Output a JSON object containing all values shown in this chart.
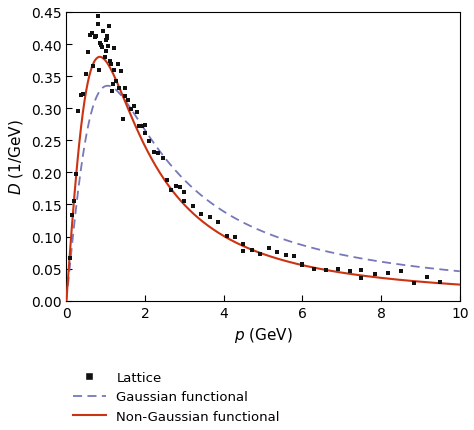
{
  "xlabel": "p (GeV)",
  "ylabel": "D (1/GeV)",
  "xlim": [
    0,
    10
  ],
  "ylim": [
    0,
    0.45
  ],
  "yticks": [
    0,
    0.05,
    0.1,
    0.15,
    0.2,
    0.25,
    0.3,
    0.35,
    0.4,
    0.45
  ],
  "xticks": [
    0,
    2,
    4,
    6,
    8,
    10
  ],
  "legend_entries": [
    "Lattice",
    "Gaussian functional",
    "Non-Gaussian functional"
  ],
  "gaussian_color": "#7777bb",
  "nongaussian_color": "#cc3311",
  "scatter_color": "#111111",
  "background_color": "#ffffff"
}
